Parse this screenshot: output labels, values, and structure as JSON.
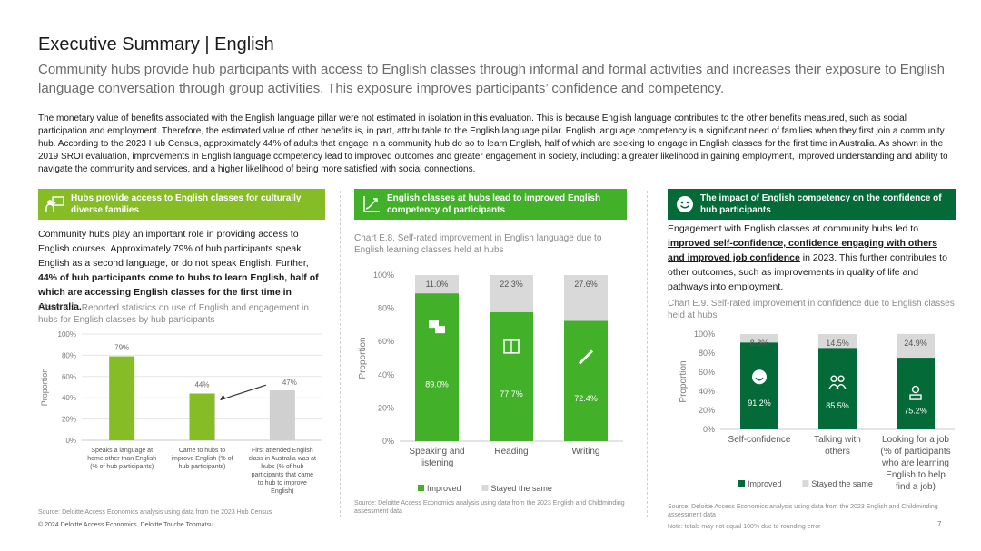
{
  "header": {
    "title": "Executive Summary | English",
    "subtitle": "Community hubs provide hub participants with access to English classes through informal and formal activities and increases their exposure to English language conversation through group activities. This exposure improves participants’ confidence and competency.",
    "intro": "The monetary value of benefits associated with the English language pillar were not estimated in isolation in this evaluation. This is because English language contributes to the other benefits measured, such as social participation and employment. Therefore, the estimated value of other benefits is, in part, attributable to the English language pillar. English language competency is a significant need of families when they first join a community hub. According to the 2023 Hub Census, approximately 44% of adults that engage in a community hub do so to learn English, half of which are seeking to engage in English classes for the first time in Australia. As shown in the 2019 SROI evaluation, improvements in English language competency lead to improved outcomes and greater engagement in society, including: a greater likelihood in gaining employment, improved understanding and ability to navigate the community and services, and a higher likelihood of being more satisfied with social connections."
  },
  "colors": {
    "lime": "#86BC25",
    "green": "#43B02A",
    "dark_green": "#046A38",
    "grey": "#D0D0D0"
  },
  "col1": {
    "banner": "Hubs provide access to English classes for culturally diverse families",
    "banner_icon": "people-board-icon",
    "para_plain": "Community hubs play an important role in providing access to English courses. Approximately 79% of hub participants speak English as a second language, or do not speak English. Further, ",
    "para_bold": "44% of hub participants come to hubs to learn English, half of which are accessing English classes for the first time in Australia.",
    "chart_title": "Chart E.7. Reported statistics on use of English and engagement in hubs for English classes by hub participants",
    "source": "Source: Deloitte Access Economics analysis using data from the 2023 Hub Census"
  },
  "col2": {
    "banner": "English classes at hubs lead to improved English competency of participants",
    "banner_icon": "growth-chart-icon",
    "chart_title": "Chart E.8. Self-rated improvement in English language due to English learning classes held at hubs",
    "source": "Source: Deloitte Access Economics analysis using data from the 2023 English and Childminding assessment data"
  },
  "col3": {
    "banner": "The impact of English competency on the confidence of hub participants",
    "banner_icon": "smiley-icon",
    "para_1": "Engagement with English classes at community hubs led to ",
    "para_u": "improved self-confidence, confidence engaging with others and improved job confidence",
    "para_2": " in 2023. This further contributes to other outcomes, such as improvements in quality of life and pathways into employment.",
    "chart_title": "Chart E.9. Self-rated improvement in confidence due to English classes held at hubs",
    "source": "Source: Deloitte Access Economics analysis using data from the 2023 English and Childminding assessment data",
    "note": "Note: totals may not equal 100% due to rounding error"
  },
  "footer": {
    "copyright": "© 2024 Deloitte Access Economics. Deloitte Touche Tohmatsu",
    "page": "7"
  },
  "chart_data": [
    {
      "type": "bar",
      "ylabel": "Proportion",
      "ylim": [
        0,
        100
      ],
      "yticks": [
        "0%",
        "20%",
        "40%",
        "60%",
        "80%",
        "100%"
      ],
      "categories": [
        [
          "Speaks a language at",
          "home other than English",
          "(% of hub participants)"
        ],
        [
          "Came to hubs to",
          "improve English (% of",
          "hub participants)"
        ],
        [
          "First attended English",
          "class in Australia was at",
          "hubs (% of hub",
          "participants that came",
          "to hub to improve",
          "English)"
        ]
      ],
      "values": [
        79,
        44,
        47
      ],
      "labels": [
        "79%",
        "44%",
        "47%"
      ],
      "bar_colors": [
        "#86BC25",
        "#86BC25",
        "#D0D0D0"
      ]
    },
    {
      "type": "bar",
      "stacked": true,
      "ylabel": "Proportion",
      "ylim": [
        0,
        100
      ],
      "yticks": [
        "0%",
        "20%",
        "40%",
        "60%",
        "80%",
        "100%"
      ],
      "categories": [
        [
          "Speaking and",
          "listening"
        ],
        [
          "Reading"
        ],
        [
          "Writing"
        ]
      ],
      "icons": [
        "speech-bubbles-icon",
        "book-icon",
        "pen-icon"
      ],
      "series": [
        {
          "name": "Improved",
          "color": "#43B02A",
          "values": [
            89.0,
            77.7,
            72.4
          ],
          "labels": [
            "89.0%",
            "77.7%",
            "72.4%"
          ]
        },
        {
          "name": "Stayed the same",
          "color": "#D9D9D9",
          "values": [
            11.0,
            22.3,
            27.6
          ],
          "labels": [
            "11.0%",
            "22.3%",
            "27.6%"
          ]
        }
      ]
    },
    {
      "type": "bar",
      "stacked": true,
      "ylabel": "Proportion",
      "ylim": [
        0,
        100
      ],
      "yticks": [
        "0%",
        "20%",
        "40%",
        "60%",
        "80%",
        "100%"
      ],
      "categories": [
        [
          "Self-confidence"
        ],
        [
          "Talking with",
          "others"
        ],
        [
          "Looking for a job",
          "(% of participants",
          "who are learning",
          "English to help",
          "find a job)"
        ]
      ],
      "icons": [
        "smiley-icon",
        "people-icon",
        "worker-icon"
      ],
      "series": [
        {
          "name": "Improved",
          "color": "#046A38",
          "values": [
            91.2,
            85.5,
            75.2
          ],
          "labels": [
            "91.2%",
            "85.5%",
            "75.2%"
          ]
        },
        {
          "name": "Stayed the same",
          "color": "#D9D9D9",
          "values": [
            8.8,
            14.5,
            24.9
          ],
          "labels": [
            "8.8%",
            "14.5%",
            "24.9%"
          ]
        }
      ]
    }
  ]
}
